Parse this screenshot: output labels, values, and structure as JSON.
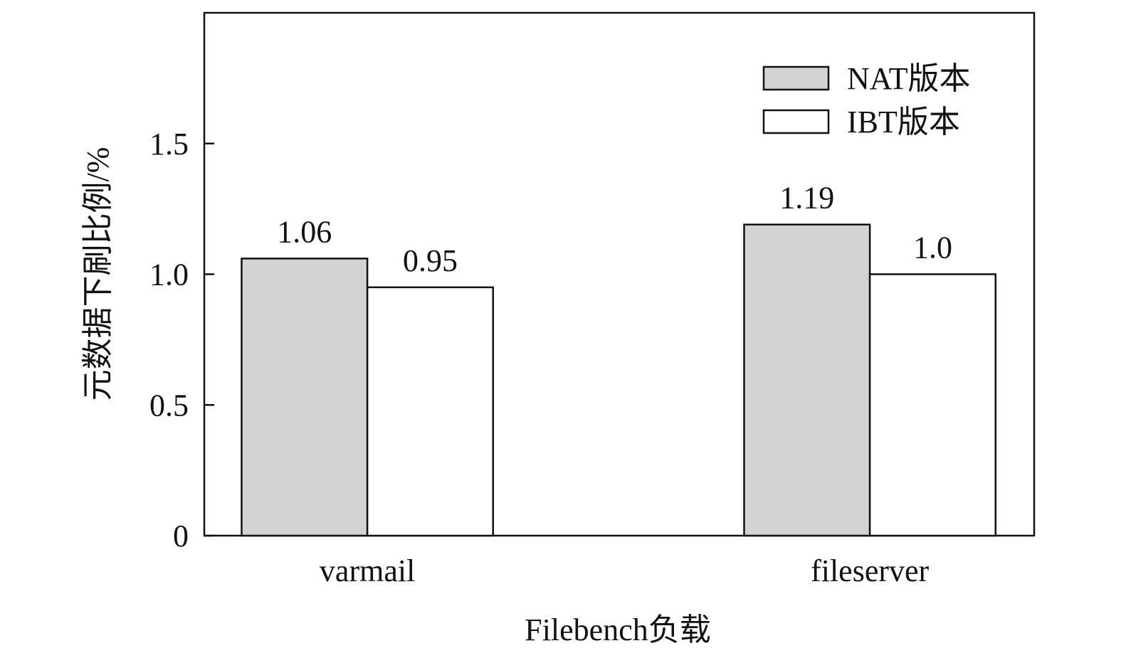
{
  "chart_data": {
    "type": "bar",
    "title": "",
    "xlabel": "Filebench负载",
    "ylabel": "元数据下刷比例/%",
    "categories": [
      "varmail",
      "fileserver"
    ],
    "series": [
      {
        "name": "NAT版本",
        "values": [
          1.06,
          1.19
        ],
        "labels": [
          "1.06",
          "1.19"
        ],
        "color": "#d3d3d3"
      },
      {
        "name": "IBT版本",
        "values": [
          0.95,
          1.0
        ],
        "labels": [
          "0.95",
          "1.0"
        ],
        "color": "#ffffff"
      }
    ],
    "ylim": [
      0,
      2.0
    ],
    "yticks": [
      0,
      0.5,
      1.0,
      1.5
    ],
    "ytick_labels": [
      "0",
      "0.5",
      "1.0",
      "1.5"
    ],
    "grid": false,
    "legend_position": "top-right"
  }
}
